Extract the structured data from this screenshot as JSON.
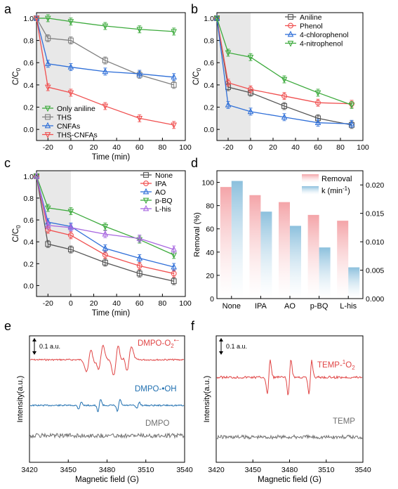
{
  "colors": {
    "black": "#000000",
    "gray": "#808080",
    "red": "#f05050",
    "blue": "#2f6fd8",
    "green": "#3caa3c",
    "purple": "#a868e0",
    "darkgray": "#555555",
    "shade": "#e8e8e8",
    "bar_removal": "#f4a4a8",
    "bar_k": "#8cc0dd",
    "epr_red": "#e04545",
    "epr_blue": "#1f6fb0",
    "epr_gray": "#707070"
  },
  "chart_data": [
    {
      "panel": "a",
      "type": "line",
      "xlabel": "Time (min)",
      "ylabel": "C/C0",
      "xlim": [
        -30,
        100
      ],
      "ylim": [
        -0.1,
        1.05
      ],
      "xticks": [
        "-20",
        "0",
        "20",
        "40",
        "60",
        "80",
        "100"
      ],
      "yticks": [
        "0.0",
        "0.2",
        "0.4",
        "0.6",
        "0.8",
        "1.0"
      ],
      "shaded_region": [
        -30,
        0
      ],
      "legend_position": "bottom-left",
      "x": [
        -30,
        -20,
        0,
        30,
        60,
        90
      ],
      "series": [
        {
          "name": "Only aniline",
          "color": "#3caa3c",
          "marker": "triangle-down",
          "values": [
            1.0,
            1.0,
            0.97,
            0.93,
            0.9,
            0.88
          ]
        },
        {
          "name": "THS",
          "color": "#808080",
          "marker": "square",
          "values": [
            1.0,
            0.82,
            0.8,
            0.62,
            0.49,
            0.4
          ]
        },
        {
          "name": "CNFAs",
          "color": "#2f6fd8",
          "marker": "triangle-up",
          "values": [
            1.0,
            0.59,
            0.56,
            0.52,
            0.5,
            0.47
          ]
        },
        {
          "name": "THS-CNFAs",
          "color": "#f05050",
          "marker": "triangle-down",
          "values": [
            1.0,
            0.38,
            0.33,
            0.21,
            0.1,
            0.04
          ]
        }
      ]
    },
    {
      "panel": "b",
      "type": "line",
      "xlabel": "",
      "ylabel": "C/C0",
      "xlim": [
        -30,
        100
      ],
      "ylim": [
        -0.1,
        1.05
      ],
      "xticks": [
        "-20",
        "0",
        "20",
        "40",
        "60",
        "80",
        "100"
      ],
      "yticks": [
        "0.0",
        "0.2",
        "0.4",
        "0.6",
        "0.8",
        "1.0"
      ],
      "shaded_region": [
        -30,
        0
      ],
      "legend_position": "top-right",
      "x": [
        -30,
        -20,
        0,
        30,
        60,
        90
      ],
      "series": [
        {
          "name": "Aniline",
          "color": "#555555",
          "marker": "square",
          "values": [
            1.0,
            0.38,
            0.33,
            0.21,
            0.1,
            0.04
          ]
        },
        {
          "name": "Phenol",
          "color": "#f05050",
          "marker": "circle",
          "values": [
            1.0,
            0.42,
            0.36,
            0.3,
            0.24,
            0.23
          ]
        },
        {
          "name": "4-chlorophenol",
          "color": "#2f6fd8",
          "marker": "triangle-up",
          "values": [
            1.0,
            0.22,
            0.16,
            0.11,
            0.06,
            0.05
          ]
        },
        {
          "name": "4-nitrophenol",
          "color": "#3caa3c",
          "marker": "triangle-down",
          "values": [
            1.0,
            0.69,
            0.65,
            0.45,
            0.33,
            0.22
          ]
        }
      ]
    },
    {
      "panel": "c",
      "type": "line",
      "xlabel": "Time (min)",
      "ylabel": "C/C0",
      "xlim": [
        -30,
        100
      ],
      "ylim": [
        -0.1,
        1.05
      ],
      "xticks": [
        "-20",
        "0",
        "20",
        "40",
        "60",
        "80",
        "100"
      ],
      "yticks": [
        "0.0",
        "0.2",
        "0.4",
        "0.6",
        "0.8",
        "1.0"
      ],
      "shaded_region": [
        -30,
        0
      ],
      "legend_position": "top-right",
      "x": [
        -30,
        -20,
        0,
        30,
        60,
        90
      ],
      "series": [
        {
          "name": "None",
          "color": "#555555",
          "marker": "square",
          "values": [
            1.0,
            0.38,
            0.33,
            0.21,
            0.11,
            0.04
          ]
        },
        {
          "name": "IPA",
          "color": "#f05050",
          "marker": "circle",
          "values": [
            1.0,
            0.51,
            0.46,
            0.28,
            0.18,
            0.11
          ]
        },
        {
          "name": "AO",
          "color": "#2f6fd8",
          "marker": "triangle-up",
          "values": [
            1.0,
            0.58,
            0.54,
            0.34,
            0.25,
            0.17
          ]
        },
        {
          "name": "p-BQ",
          "color": "#3caa3c",
          "marker": "triangle-down",
          "values": [
            1.0,
            0.71,
            0.68,
            0.54,
            0.42,
            0.28
          ]
        },
        {
          "name": "L-his",
          "color": "#a868e0",
          "marker": "triangle-up",
          "values": [
            1.0,
            0.55,
            0.53,
            0.47,
            0.43,
            0.33
          ]
        }
      ]
    },
    {
      "panel": "d",
      "type": "bar",
      "categories": [
        "None",
        "IPA",
        "AO",
        "p-BQ",
        "L-his"
      ],
      "ylabel": "Removal (%)",
      "y2label": "k (min-1)",
      "ylim": [
        0,
        110
      ],
      "y2lim": [
        0,
        0.0225
      ],
      "yticks": [
        "0",
        "20",
        "40",
        "60",
        "80",
        "100"
      ],
      "y2ticks": [
        "0.000",
        "0.005",
        "0.010",
        "0.015",
        "0.020"
      ],
      "legend_position": "top-right",
      "series": [
        {
          "name": "Removal",
          "color": "#f4a4a8",
          "axis": "left",
          "values": [
            96,
            89,
            83,
            72,
            67
          ]
        },
        {
          "name": "k (min",
          "color": "#8cc0dd",
          "axis": "right",
          "values": [
            0.0207,
            0.0153,
            0.0128,
            0.009,
            0.0055
          ]
        }
      ]
    },
    {
      "panel": "e",
      "type": "line",
      "xlabel": "Magnetic field (G)",
      "ylabel": "Intensity(a.u.)",
      "xlim": [
        3420,
        3540
      ],
      "xticks": [
        "3420",
        "3450",
        "3480",
        "3510",
        "3540"
      ],
      "scale_bar": "0.1 a.u.",
      "series": [
        {
          "name": "DMPO-O2•−",
          "color": "#e04545",
          "signal": "dmpo-superoxide"
        },
        {
          "name": "DMPO-•OH",
          "color": "#1f6fb0",
          "signal": "dmpo-hydroxyl"
        },
        {
          "name": "DMPO",
          "color": "#707070",
          "signal": "noise"
        }
      ]
    },
    {
      "panel": "f",
      "type": "line",
      "xlabel": "Magnetic field (G)",
      "ylabel": "Intensity(a.u.)",
      "xlim": [
        3420,
        3540
      ],
      "xticks": [
        "3420",
        "3450",
        "3480",
        "3510",
        "3540"
      ],
      "scale_bar": "0.1 a.u.",
      "series": [
        {
          "name": "TEMP-1O2",
          "color": "#e04545",
          "signal": "temp-triplet"
        },
        {
          "name": "TEMP",
          "color": "#707070",
          "signal": "noise"
        }
      ]
    }
  ],
  "labels": {
    "panel_a": "a",
    "panel_b": "b",
    "panel_c": "c",
    "panel_d": "d",
    "panel_e": "e",
    "panel_f": "f",
    "k_unit_sup": "-1",
    "k_unit_close": ")",
    "c0_main": "C/C",
    "c0_sub": "0",
    "o2_main": "DMPO-O",
    "o2_sub": "2",
    "o2_sup": "•−",
    "temp_main": "TEMP-",
    "temp_sup": "1",
    "temp_o": "O",
    "temp_sub": "2",
    "dmpo_oh": "DMPO-•OH",
    "dmpo": "DMPO",
    "temp": "TEMP"
  }
}
